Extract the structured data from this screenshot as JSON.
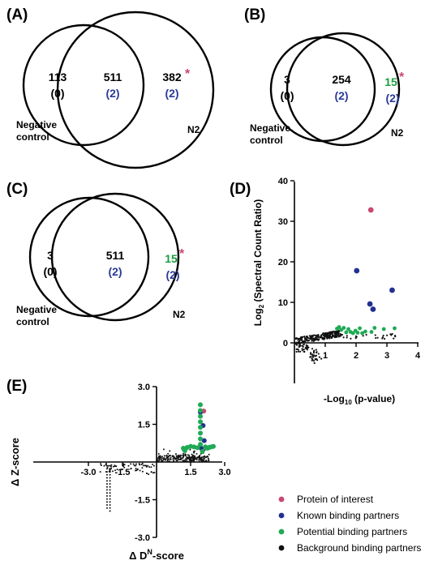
{
  "colors": {
    "interest": "#c9486f",
    "known": "#22308f",
    "potential": "#1faa55",
    "background": "#111111",
    "count_blue": "#2b3a99",
    "count_green": "#1a9c3f",
    "star": "#c9486f"
  },
  "panels": {
    "A": {
      "label": "(A)",
      "left_count": "113",
      "left_paren": "(0)",
      "mid_count": "511",
      "mid_paren": "(2)",
      "right_count": "382",
      "right_paren": "(2)",
      "star": "*",
      "left_name_1": "Negative",
      "left_name_2": "control",
      "right_name": "N2"
    },
    "B": {
      "label": "(B)",
      "left_count": "3",
      "left_paren": "(0)",
      "mid_count": "254",
      "mid_paren": "(2)",
      "right_count": "15",
      "right_paren": "(2)",
      "star": "*",
      "left_name_1": "Negative",
      "left_name_2": "control",
      "right_name": "N2"
    },
    "C": {
      "label": "(C)",
      "left_count": "3",
      "left_paren": "(0)",
      "mid_count": "511",
      "mid_paren": "(2)",
      "right_count": "15",
      "right_paren": "(2)",
      "star": "*",
      "left_name_1": "Negative",
      "left_name_2": "control",
      "right_name": "N2"
    },
    "D": {
      "label": "(D)"
    },
    "E": {
      "label": "(E)"
    }
  },
  "chart_data": [
    {
      "type": "scatter",
      "panel": "D",
      "xlabel_main": "-Log",
      "xlabel_sub": "10",
      "xlabel_tail": " (p-value)",
      "ylabel_main": "Log",
      "ylabel_sub": "2",
      "ylabel_tail": " (Spectral Count Ratio)",
      "xlim": [
        0,
        4
      ],
      "ylim": [
        -10,
        40
      ],
      "xticks": [
        "1",
        "2",
        "3",
        "4"
      ],
      "yticks": [
        "40",
        "30",
        "20",
        "10",
        "0"
      ],
      "series": [
        {
          "key": "interest",
          "points": [
            [
              2.48,
              32.8
            ]
          ]
        },
        {
          "key": "known",
          "points": [
            [
              2.02,
              17.8
            ],
            [
              2.45,
              9.6
            ],
            [
              2.55,
              8.3
            ],
            [
              3.17,
              13.0
            ]
          ]
        },
        {
          "key": "potential",
          "points": [
            [
              1.38,
              3.5
            ],
            [
              1.45,
              3.9
            ],
            [
              1.52,
              3.2
            ],
            [
              1.6,
              3.7
            ],
            [
              1.68,
              2.6
            ],
            [
              1.75,
              3.4
            ],
            [
              1.82,
              2.7
            ],
            [
              1.9,
              2.4
            ],
            [
              1.98,
              3.0
            ],
            [
              2.05,
              2.5
            ],
            [
              2.12,
              3.6
            ],
            [
              2.2,
              2.4
            ],
            [
              2.3,
              2.8
            ],
            [
              2.5,
              2.7
            ],
            [
              2.6,
              3.7
            ],
            [
              2.9,
              3.4
            ],
            [
              3.25,
              3.6
            ]
          ]
        }
      ]
    },
    {
      "type": "scatter",
      "panel": "E",
      "xlabel_prefix": "Δ D",
      "xlabel_sup": "N",
      "xlabel_tail": "-score",
      "ylabel": "Δ Z-score",
      "xlim": [
        -3,
        3
      ],
      "ylim": [
        -3,
        3
      ],
      "xticks": [
        "-3.0",
        "-1.5",
        "1.5",
        "3.0"
      ],
      "yticks": [
        "3.0",
        "1.5",
        "-1.5",
        "-3.0"
      ],
      "series": [
        {
          "key": "interest",
          "points": [
            [
              2.08,
              2.03
            ]
          ]
        },
        {
          "key": "known",
          "points": [
            [
              1.93,
              1.98
            ],
            [
              2.05,
              1.45
            ],
            [
              2.1,
              0.85
            ],
            [
              1.97,
              0.55
            ]
          ]
        },
        {
          "key": "potential",
          "points": [
            [
              1.93,
              2.28
            ],
            [
              1.93,
              2.05
            ],
            [
              1.93,
              1.82
            ],
            [
              1.93,
              1.6
            ],
            [
              1.93,
              1.38
            ],
            [
              1.93,
              1.15
            ],
            [
              1.93,
              0.92
            ],
            [
              1.93,
              0.7
            ],
            [
              1.18,
              0.55
            ],
            [
              1.35,
              0.58
            ],
            [
              1.5,
              0.62
            ],
            [
              1.65,
              0.6
            ],
            [
              1.8,
              0.57
            ],
            [
              2.15,
              0.6
            ],
            [
              2.25,
              0.55
            ],
            [
              2.32,
              0.58
            ],
            [
              2.4,
              0.6
            ],
            [
              2.5,
              0.62
            ],
            [
              1.25,
              0.45
            ],
            [
              2.02,
              0.42
            ]
          ]
        }
      ]
    }
  ],
  "legend": {
    "items": [
      {
        "key": "interest",
        "label": "Protein of interest"
      },
      {
        "key": "known",
        "label": "Known binding partners"
      },
      {
        "key": "potential",
        "label": "Potential binding partners"
      },
      {
        "key": "background",
        "label": "Background binding partners"
      }
    ]
  }
}
